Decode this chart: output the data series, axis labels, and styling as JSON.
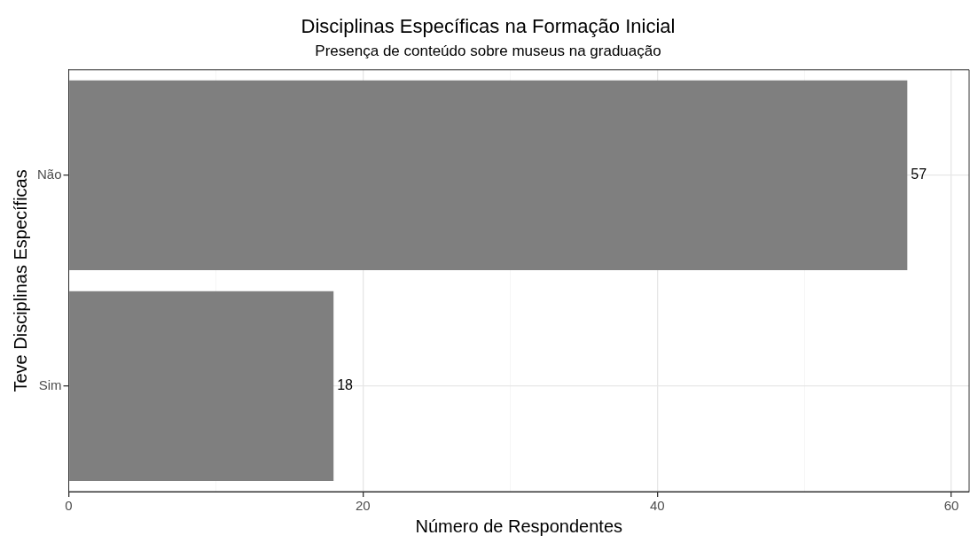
{
  "chart_data": {
    "type": "bar",
    "orientation": "horizontal",
    "title": "Disciplinas Específicas na Formação Inicial",
    "subtitle": "Presença de conteúdo sobre museus na graduação",
    "xlabel": "Número de Respondentes",
    "ylabel": "Teve Disciplinas Específicas",
    "categories": [
      "Não",
      "Sim"
    ],
    "values": [
      57,
      18
    ],
    "color": "#7f7f7f",
    "data_labels": true,
    "xlim": [
      0,
      61.2
    ],
    "xticks": [
      0,
      {
        "value": 10,
        "label": null
      },
      20,
      {
        "value": 30,
        "label": null
      },
      40,
      {
        "value": 50,
        "label": null
      },
      60
    ],
    "grid": true,
    "legend": false
  }
}
